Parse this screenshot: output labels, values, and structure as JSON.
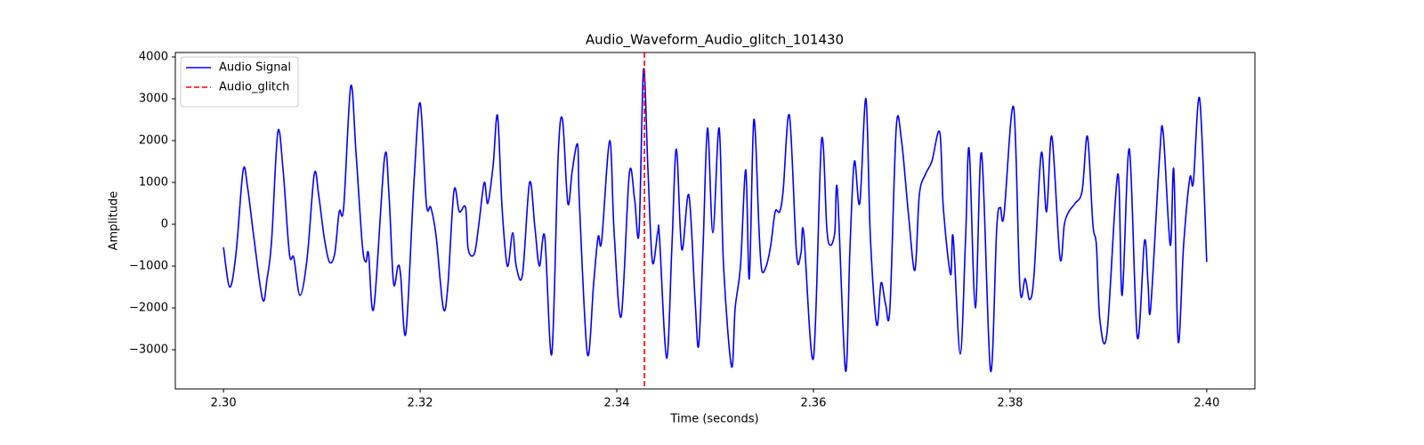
{
  "chart_data": {
    "type": "line",
    "title": "Audio_Waveform_Audio_glitch_101430",
    "x_label": "Time (seconds)",
    "y_label": "Amplitude",
    "x": [
      2.3,
      2.30063,
      2.30127,
      2.30199,
      2.30244,
      2.30308,
      2.30398,
      2.30443,
      2.30489,
      2.30552,
      2.30606,
      2.3067,
      2.30715,
      2.30778,
      2.30851,
      2.30923,
      2.30968,
      2.31023,
      2.31077,
      2.31131,
      2.31177,
      2.31222,
      2.31294,
      2.31348,
      2.31412,
      2.31448,
      2.31475,
      2.31529,
      2.31638,
      2.31683,
      2.31729,
      2.31774,
      2.31801,
      2.31855,
      2.31937,
      2.32,
      2.32063,
      2.32109,
      2.32163,
      2.32235,
      2.32281,
      2.32344,
      2.32398,
      2.32462,
      2.32489,
      2.32552,
      2.32597,
      2.32652,
      2.32688,
      2.32742,
      2.32787,
      2.32833,
      2.32887,
      2.32941,
      2.32977,
      2.33041,
      2.33113,
      2.33168,
      2.33213,
      2.33267,
      2.33339,
      2.33403,
      2.33448,
      2.33502,
      2.33548,
      2.33602,
      2.3362,
      2.33701,
      2.33765,
      2.3381,
      2.33846,
      2.33928,
      2.33973,
      2.34045,
      2.34127,
      2.34181,
      2.34226,
      2.34272,
      2.34317,
      2.34362,
      2.34416,
      2.34434,
      2.34507,
      2.34561,
      2.34606,
      2.34661,
      2.34733,
      2.34796,
      2.34833,
      2.34878,
      2.34923,
      2.34977,
      2.35041,
      2.35086,
      2.35167,
      2.35204,
      2.35258,
      2.35312,
      2.35348,
      2.35394,
      2.35448,
      2.35475,
      2.3552,
      2.35566,
      2.35611,
      2.35656,
      2.35692,
      2.35756,
      2.35828,
      2.35873,
      2.35901,
      2.36,
      2.36082,
      2.36136,
      2.36172,
      2.36217,
      2.36244,
      2.36326,
      2.36371,
      2.36416,
      2.36471,
      2.36534,
      2.36579,
      2.36643,
      2.36688,
      2.36733,
      2.36778,
      2.36842,
      2.36896,
      2.36968,
      2.37032,
      2.37077,
      2.3714,
      2.37204,
      2.37285,
      2.37321,
      2.37394,
      2.37421,
      2.37493,
      2.37548,
      2.37584,
      2.37647,
      2.3771,
      2.37801,
      2.37864,
      2.379,
      2.37937,
      2.38036,
      2.381,
      2.38154,
      2.38199,
      2.38244,
      2.38317,
      2.38371,
      2.38425,
      2.38507,
      2.38552,
      2.38597,
      2.38661,
      2.38733,
      2.38787,
      2.38842,
      2.38878,
      2.38914,
      2.38986,
      2.39095,
      2.3914,
      2.39213,
      2.39294,
      2.39367,
      2.39403,
      2.3943,
      2.3952,
      2.39557,
      2.39629,
      2.39665,
      2.3971,
      2.39765,
      2.39828,
      2.39864,
      2.39928,
      2.4
    ],
    "series": [
      {
        "name": "Audio Signal",
        "color": "#0000ff",
        "values": [
          -550,
          -1500,
          -700,
          1280,
          900,
          -300,
          -1800,
          -1300,
          -400,
          2200,
          1300,
          -700,
          -800,
          -1700,
          -800,
          1200,
          700,
          -300,
          -900,
          -700,
          300,
          400,
          3300,
          1700,
          -500,
          -900,
          -700,
          -2000,
          1600,
          700,
          -1400,
          -1000,
          -1200,
          -2600,
          1000,
          2900,
          500,
          400,
          -300,
          -2000,
          -1500,
          800,
          300,
          400,
          -600,
          -700,
          0,
          1000,
          500,
          1400,
          2600,
          400,
          -1000,
          -200,
          -1000,
          -1200,
          1000,
          -100,
          -1000,
          -300,
          -3100,
          1600,
          2500,
          500,
          1300,
          1900,
          500,
          -3100,
          -1400,
          -300,
          -400,
          2000,
          -200,
          -2200,
          1200,
          600,
          -200,
          3700,
          1300,
          -900,
          -200,
          -300,
          -3200,
          -500,
          1800,
          -600,
          700,
          -1800,
          -2900,
          -500,
          2300,
          -200,
          2300,
          -1000,
          -3400,
          -2000,
          -1000,
          1300,
          -1300,
          2500,
          -200,
          -1100,
          -1000,
          -500,
          300,
          300,
          800,
          2600,
          -700,
          -700,
          -200,
          -3200,
          2000,
          -100,
          -500,
          -200,
          800,
          -3500,
          -600,
          1500,
          500,
          3000,
          -300,
          -2400,
          -1400,
          -1900,
          -2000,
          2300,
          2000,
          200,
          -1100,
          700,
          1200,
          1500,
          2200,
          400,
          -1200,
          -300,
          -3100,
          -300,
          1800,
          -2000,
          1700,
          -3500,
          -100,
          400,
          200,
          2800,
          -1500,
          -1300,
          -1800,
          -1200,
          1700,
          300,
          2100,
          -800,
          0,
          300,
          500,
          800,
          2100,
          0,
          -500,
          -2300,
          -2600,
          1200,
          -1700,
          1800,
          -2700,
          -400,
          -1400,
          -2000,
          1600,
          2200,
          -500,
          1300,
          -2800,
          -500,
          1100,
          1000,
          3000,
          -900
        ]
      }
    ],
    "vlines": [
      {
        "name": "Audio_glitch",
        "x": 2.34281,
        "color": "#ff0000",
        "style": "dashed"
      }
    ],
    "xlim": [
      2.2951,
      2.4049
    ],
    "ylim": [
      -3936,
      4106
    ],
    "xticks": [
      {
        "value": 2.3,
        "label": "2.30"
      },
      2.32,
      2.34,
      2.36,
      2.38,
      {
        "value": 2.4,
        "label": "2.40"
      }
    ],
    "yticks": [
      {
        "value": -3000,
        "label": "−3000"
      },
      {
        "value": -2000,
        "label": "−2000"
      },
      {
        "value": -1000,
        "label": "−1000"
      },
      0,
      1000,
      2000,
      3000,
      4000
    ],
    "grid": false,
    "legend": "upper-left"
  }
}
